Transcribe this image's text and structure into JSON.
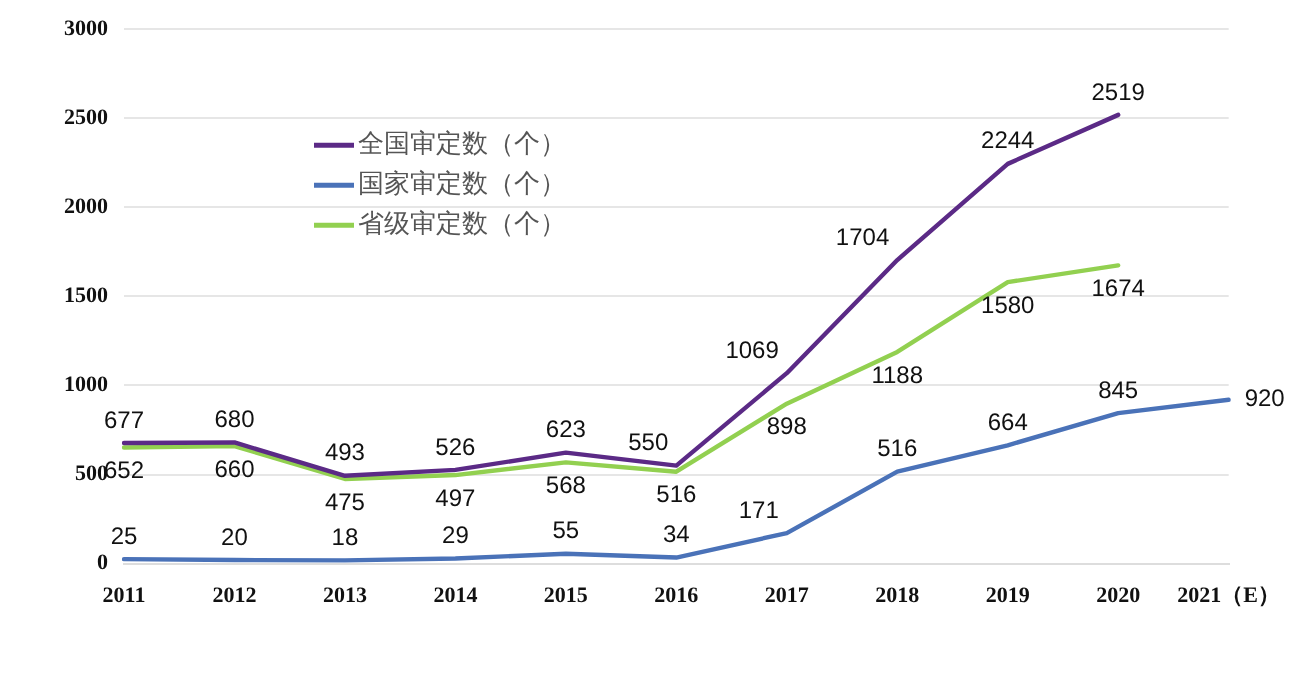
{
  "chart_data": {
    "type": "line",
    "categories": [
      "2011",
      "2012",
      "2013",
      "2014",
      "2015",
      "2016",
      "2017",
      "2018",
      "2019",
      "2020",
      "2021（E）"
    ],
    "series": [
      {
        "name": "全国审定数（个）",
        "color": "#5b2a86",
        "values": [
          677,
          680,
          493,
          526,
          623,
          550,
          1069,
          1704,
          2244,
          2519,
          null
        ]
      },
      {
        "name": "国家审定数（个）",
        "color": "#4a72b8",
        "values": [
          25,
          20,
          18,
          29,
          55,
          34,
          171,
          516,
          664,
          845,
          920
        ]
      },
      {
        "name": "省级审定数（个）",
        "color": "#92d050",
        "values": [
          652,
          660,
          475,
          497,
          568,
          516,
          898,
          1188,
          1580,
          1674,
          null
        ]
      }
    ],
    "ylim": [
      0,
      3000
    ],
    "yticks": [
      0,
      500,
      1000,
      1500,
      2000,
      2500,
      3000
    ],
    "grid": "y",
    "legend": "top left",
    "data_labels": true,
    "marker": "none",
    "line_style": "solid"
  }
}
